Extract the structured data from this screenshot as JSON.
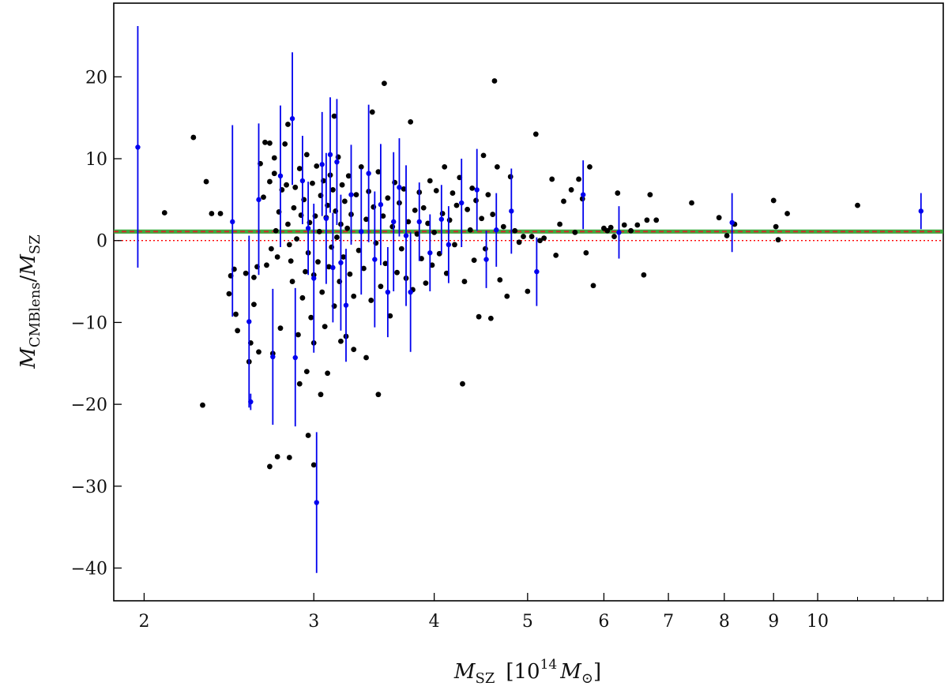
{
  "chart_data": {
    "type": "scatter",
    "title": "",
    "xlabel": {
      "main": "M",
      "main_sub": "SZ",
      "unit_open": "[10",
      "unit_sup": "14",
      "unit_mid": "M",
      "unit_sub": "⊙",
      "unit_close": "]"
    },
    "ylabel": {
      "num": "M",
      "num_sub": "CMBlens",
      "slash": "/",
      "den": "M",
      "den_sub": "SZ"
    },
    "x_scale": "log",
    "xlim": [
      1.86,
      13.5
    ],
    "ylim": [
      -44,
      29
    ],
    "x_ticks": [
      2,
      3,
      4,
      5,
      6,
      7,
      8,
      9,
      10
    ],
    "x_tick_labels": [
      "2",
      "3",
      "4",
      "5",
      "6",
      "7",
      "8",
      "9",
      "10"
    ],
    "y_ticks": [
      -40,
      -30,
      -20,
      -10,
      0,
      10,
      20
    ],
    "y_tick_labels": [
      "−40",
      "−30",
      "−20",
      "−10",
      "0",
      "10",
      "20"
    ],
    "grid": false,
    "legend": null,
    "colors": {
      "points": "#000000",
      "error_points": "#0000ee",
      "mean_band": "#2ca02c",
      "mean_line": "#d62728",
      "zero_line": "#ff0000"
    },
    "reference_lines": [
      {
        "name": "zero",
        "y": 0,
        "style": "dotted",
        "color": "#ff0000"
      },
      {
        "name": "mean",
        "y": 1.1,
        "style": "dashed",
        "color": "#d62728",
        "band": [
          0.85,
          1.35
        ],
        "band_color": "#2ca02c"
      }
    ],
    "series": [
      {
        "kind": "points",
        "color": "#000000",
        "points": [
          [
            2.1,
            3.4
          ],
          [
            2.25,
            12.6
          ],
          [
            2.32,
            7.2
          ],
          [
            2.35,
            3.3
          ],
          [
            2.4,
            3.3
          ],
          [
            2.45,
            -6.5
          ],
          [
            2.46,
            -4.3
          ],
          [
            2.48,
            -3.5
          ],
          [
            2.49,
            -9.0
          ],
          [
            2.5,
            -11.0
          ],
          [
            2.55,
            -4.0
          ],
          [
            2.57,
            -14.8
          ],
          [
            2.58,
            -12.5
          ],
          [
            2.6,
            -7.8
          ],
          [
            2.6,
            -4.5
          ],
          [
            2.62,
            -3.2
          ],
          [
            2.63,
            -13.6
          ],
          [
            2.64,
            9.4
          ],
          [
            2.66,
            5.3
          ],
          [
            2.67,
            12.0
          ],
          [
            2.68,
            -3.0
          ],
          [
            2.7,
            7.2
          ],
          [
            2.71,
            -1.0
          ],
          [
            2.72,
            -13.8
          ],
          [
            2.73,
            8.2
          ],
          [
            2.74,
            1.2
          ],
          [
            2.75,
            -2.0
          ],
          [
            2.76,
            3.5
          ],
          [
            2.77,
            -10.7
          ],
          [
            2.78,
            6.2
          ],
          [
            2.8,
            11.8
          ],
          [
            2.81,
            6.8
          ],
          [
            2.82,
            2.0
          ],
          [
            2.83,
            -0.5
          ],
          [
            2.84,
            -2.5
          ],
          [
            2.85,
            -5.0
          ],
          [
            2.86,
            4.0
          ],
          [
            2.87,
            6.5
          ],
          [
            2.88,
            0.2
          ],
          [
            2.89,
            -11.5
          ],
          [
            2.9,
            8.8
          ],
          [
            2.91,
            3.1
          ],
          [
            2.92,
            -7.0
          ],
          [
            2.93,
            5.0
          ],
          [
            2.94,
            -3.8
          ],
          [
            2.95,
            10.5
          ],
          [
            2.96,
            -1.5
          ],
          [
            2.97,
            2.2
          ],
          [
            2.98,
            -9.4
          ],
          [
            2.99,
            7.0
          ],
          [
            3.0,
            -4.2
          ],
          [
            3.01,
            3.0
          ],
          [
            3.02,
            9.1
          ],
          [
            3.03,
            -2.6
          ],
          [
            3.04,
            1.1
          ],
          [
            3.05,
            5.5
          ],
          [
            3.06,
            -6.3
          ],
          [
            3.07,
            7.3
          ],
          [
            3.08,
            -10.5
          ],
          [
            3.09,
            2.8
          ],
          [
            3.1,
            4.3
          ],
          [
            3.11,
            -3.2
          ],
          [
            3.12,
            8.0
          ],
          [
            3.13,
            -0.8
          ],
          [
            3.14,
            6.2
          ],
          [
            3.15,
            -8.0
          ],
          [
            3.16,
            3.6
          ],
          [
            3.17,
            0.4
          ],
          [
            3.18,
            10.2
          ],
          [
            3.19,
            -5.0
          ],
          [
            3.2,
            2.0
          ],
          [
            3.21,
            6.8
          ],
          [
            3.22,
            -2.0
          ],
          [
            3.23,
            4.8
          ],
          [
            3.24,
            -11.7
          ],
          [
            3.25,
            1.5
          ],
          [
            3.26,
            7.9
          ],
          [
            3.27,
            -4.1
          ],
          [
            3.28,
            3.2
          ],
          [
            3.3,
            -6.8
          ],
          [
            3.32,
            5.6
          ],
          [
            3.34,
            -1.2
          ],
          [
            3.36,
            9.0
          ],
          [
            3.38,
            -3.4
          ],
          [
            3.4,
            2.6
          ],
          [
            3.42,
            6.0
          ],
          [
            3.44,
            -7.3
          ],
          [
            3.46,
            4.1
          ],
          [
            3.48,
            -0.3
          ],
          [
            3.5,
            8.4
          ],
          [
            3.52,
            -5.6
          ],
          [
            3.54,
            3.0
          ],
          [
            3.56,
            -2.8
          ],
          [
            3.58,
            5.2
          ],
          [
            3.6,
            -9.2
          ],
          [
            3.62,
            1.7
          ],
          [
            3.64,
            7.1
          ],
          [
            3.66,
            -3.9
          ],
          [
            3.68,
            4.6
          ],
          [
            3.7,
            -1.0
          ],
          [
            3.72,
            6.3
          ],
          [
            3.74,
            -4.6
          ],
          [
            3.76,
            2.3
          ],
          [
            3.78,
            14.5
          ],
          [
            3.8,
            -6.0
          ],
          [
            3.82,
            3.7
          ],
          [
            3.84,
            0.8
          ],
          [
            3.86,
            5.9
          ],
          [
            3.88,
            -2.2
          ],
          [
            3.9,
            4.0
          ],
          [
            3.92,
            -5.2
          ],
          [
            3.94,
            2.1
          ],
          [
            3.96,
            7.3
          ],
          [
            3.98,
            -3.0
          ],
          [
            4.0,
            1.0
          ],
          [
            4.02,
            6.1
          ],
          [
            4.05,
            -1.6
          ],
          [
            4.08,
            3.3
          ],
          [
            4.1,
            9.0
          ],
          [
            4.12,
            -4.0
          ],
          [
            4.15,
            2.5
          ],
          [
            4.18,
            5.8
          ],
          [
            4.2,
            -0.5
          ],
          [
            4.22,
            4.3
          ],
          [
            4.25,
            7.7
          ],
          [
            4.28,
            -17.5
          ],
          [
            4.3,
            -5.0
          ],
          [
            4.33,
            3.8
          ],
          [
            4.36,
            1.3
          ],
          [
            4.38,
            6.4
          ],
          [
            4.4,
            -2.4
          ],
          [
            4.42,
            4.9
          ],
          [
            4.45,
            -9.3
          ],
          [
            4.48,
            2.7
          ],
          [
            4.5,
            10.4
          ],
          [
            4.52,
            -1.0
          ],
          [
            4.55,
            5.6
          ],
          [
            4.58,
            -9.5
          ],
          [
            4.6,
            3.2
          ],
          [
            4.62,
            19.5
          ],
          [
            4.65,
            9.0
          ],
          [
            4.68,
            -4.8
          ],
          [
            4.72,
            1.7
          ],
          [
            4.76,
            -6.8
          ],
          [
            4.8,
            7.8
          ],
          [
            4.85,
            1.2
          ],
          [
            4.9,
            -0.2
          ],
          [
            4.95,
            0.5
          ],
          [
            5.0,
            -6.2
          ],
          [
            5.05,
            0.5
          ],
          [
            5.1,
            13.0
          ],
          [
            5.15,
            0.0
          ],
          [
            5.2,
            0.3
          ],
          [
            5.3,
            7.5
          ],
          [
            5.35,
            -1.8
          ],
          [
            5.4,
            2.0
          ],
          [
            5.45,
            4.8
          ],
          [
            5.55,
            6.2
          ],
          [
            5.6,
            1.0
          ],
          [
            5.65,
            7.5
          ],
          [
            5.7,
            5.1
          ],
          [
            5.75,
            -1.5
          ],
          [
            5.8,
            9.0
          ],
          [
            5.85,
            -5.5
          ],
          [
            6.0,
            1.5
          ],
          [
            6.05,
            1.2
          ],
          [
            6.1,
            1.6
          ],
          [
            6.15,
            0.5
          ],
          [
            6.2,
            5.8
          ],
          [
            6.3,
            1.9
          ],
          [
            6.4,
            1.2
          ],
          [
            6.5,
            1.9
          ],
          [
            6.6,
            -4.2
          ],
          [
            6.65,
            2.5
          ],
          [
            6.7,
            5.6
          ],
          [
            6.8,
            2.5
          ],
          [
            7.4,
            4.6
          ],
          [
            7.9,
            2.8
          ],
          [
            8.05,
            0.6
          ],
          [
            8.2,
            2.0
          ],
          [
            9.0,
            4.9
          ],
          [
            9.05,
            1.7
          ],
          [
            9.1,
            0.1
          ],
          [
            9.3,
            3.3
          ],
          [
            11.0,
            4.3
          ],
          [
            2.9,
            -17.5
          ],
          [
            2.95,
            -16.0
          ],
          [
            3.0,
            -12.5
          ],
          [
            3.05,
            -18.8
          ],
          [
            3.1,
            -16.2
          ],
          [
            3.2,
            -12.3
          ],
          [
            3.3,
            -13.3
          ],
          [
            3.4,
            -14.3
          ],
          [
            3.5,
            -18.8
          ],
          [
            2.75,
            -26.4
          ],
          [
            2.7,
            -27.6
          ],
          [
            2.83,
            -26.5
          ],
          [
            2.96,
            -23.8
          ],
          [
            3.0,
            -27.4
          ],
          [
            2.3,
            -20.1
          ],
          [
            3.55,
            19.2
          ],
          [
            3.45,
            15.7
          ],
          [
            3.15,
            15.2
          ],
          [
            2.82,
            14.2
          ],
          [
            2.7,
            11.9
          ],
          [
            2.73,
            10.1
          ]
        ]
      },
      {
        "kind": "error_points",
        "color": "#0000ee",
        "points": [
          {
            "x": 1.97,
            "y": 11.4,
            "lo": -3.3,
            "hi": 26.2
          },
          {
            "x": 2.47,
            "y": 2.3,
            "lo": -9.3,
            "hi": 14.1
          },
          {
            "x": 2.57,
            "y": -9.9,
            "lo": -20.4,
            "hi": 0.6
          },
          {
            "x": 2.58,
            "y": -19.7,
            "lo": -20.7,
            "hi": -18.7
          },
          {
            "x": 2.63,
            "y": 5.0,
            "lo": -4.2,
            "hi": 14.3
          },
          {
            "x": 2.72,
            "y": -14.2,
            "lo": -22.5,
            "hi": -5.9
          },
          {
            "x": 2.77,
            "y": 7.9,
            "lo": -0.8,
            "hi": 16.5
          },
          {
            "x": 2.85,
            "y": 14.9,
            "lo": 6.8,
            "hi": 23.0
          },
          {
            "x": 2.87,
            "y": -14.3,
            "lo": -22.7,
            "hi": -5.8
          },
          {
            "x": 2.92,
            "y": 7.3,
            "lo": 2.0,
            "hi": 12.8
          },
          {
            "x": 2.96,
            "y": 1.5,
            "lo": -4.2,
            "hi": 7.2
          },
          {
            "x": 3.0,
            "y": -4.6,
            "lo": -13.7,
            "hi": 4.5
          },
          {
            "x": 3.02,
            "y": -32.0,
            "lo": -40.6,
            "hi": -23.4
          },
          {
            "x": 3.06,
            "y": 9.3,
            "lo": 3.0,
            "hi": 15.7
          },
          {
            "x": 3.09,
            "y": 2.7,
            "lo": -5.3,
            "hi": 10.7
          },
          {
            "x": 3.12,
            "y": 10.5,
            "lo": 3.4,
            "hi": 17.5
          },
          {
            "x": 3.14,
            "y": -3.3,
            "lo": -10.0,
            "hi": 3.4
          },
          {
            "x": 3.17,
            "y": 9.6,
            "lo": 1.9,
            "hi": 17.3
          },
          {
            "x": 3.2,
            "y": -2.7,
            "lo": -11.0,
            "hi": 5.6
          },
          {
            "x": 3.24,
            "y": -7.9,
            "lo": -14.8,
            "hi": -1.0
          },
          {
            "x": 3.28,
            "y": 5.6,
            "lo": -0.5,
            "hi": 11.7
          },
          {
            "x": 3.36,
            "y": 1.1,
            "lo": -6.6,
            "hi": 8.8
          },
          {
            "x": 3.42,
            "y": 8.2,
            "lo": -0.2,
            "hi": 16.6
          },
          {
            "x": 3.47,
            "y": -2.3,
            "lo": -10.6,
            "hi": 6.0
          },
          {
            "x": 3.52,
            "y": 4.4,
            "lo": -3.0,
            "hi": 11.8
          },
          {
            "x": 3.58,
            "y": -6.3,
            "lo": -11.8,
            "hi": -0.8
          },
          {
            "x": 3.63,
            "y": 2.3,
            "lo": -6.2,
            "hi": 10.8
          },
          {
            "x": 3.68,
            "y": 6.5,
            "lo": 0.5,
            "hi": 12.5
          },
          {
            "x": 3.74,
            "y": 0.6,
            "lo": -8.0,
            "hi": 9.2
          },
          {
            "x": 3.78,
            "y": -6.3,
            "lo": -13.6,
            "hi": 1.0
          },
          {
            "x": 3.86,
            "y": 2.3,
            "lo": -2.5,
            "hi": 7.1
          },
          {
            "x": 3.96,
            "y": -1.5,
            "lo": -6.2,
            "hi": 3.2
          },
          {
            "x": 4.07,
            "y": 2.6,
            "lo": -1.6,
            "hi": 6.8
          },
          {
            "x": 4.14,
            "y": -0.5,
            "lo": -5.2,
            "hi": 4.2
          },
          {
            "x": 4.27,
            "y": 4.6,
            "lo": -0.8,
            "hi": 10.0
          },
          {
            "x": 4.43,
            "y": 6.2,
            "lo": 1.2,
            "hi": 11.2
          },
          {
            "x": 4.53,
            "y": -2.3,
            "lo": -5.8,
            "hi": 1.2
          },
          {
            "x": 4.64,
            "y": 1.3,
            "lo": -3.2,
            "hi": 5.8
          },
          {
            "x": 4.81,
            "y": 3.6,
            "lo": -1.6,
            "hi": 8.8
          },
          {
            "x": 5.11,
            "y": -3.8,
            "lo": -8.0,
            "hi": 0.4
          },
          {
            "x": 5.71,
            "y": 5.6,
            "lo": 1.4,
            "hi": 9.8
          },
          {
            "x": 6.22,
            "y": 1.0,
            "lo": -2.2,
            "hi": 4.2
          },
          {
            "x": 8.15,
            "y": 2.2,
            "lo": -1.4,
            "hi": 5.8
          },
          {
            "x": 12.8,
            "y": 3.6,
            "lo": 1.4,
            "hi": 5.8
          }
        ]
      }
    ]
  }
}
